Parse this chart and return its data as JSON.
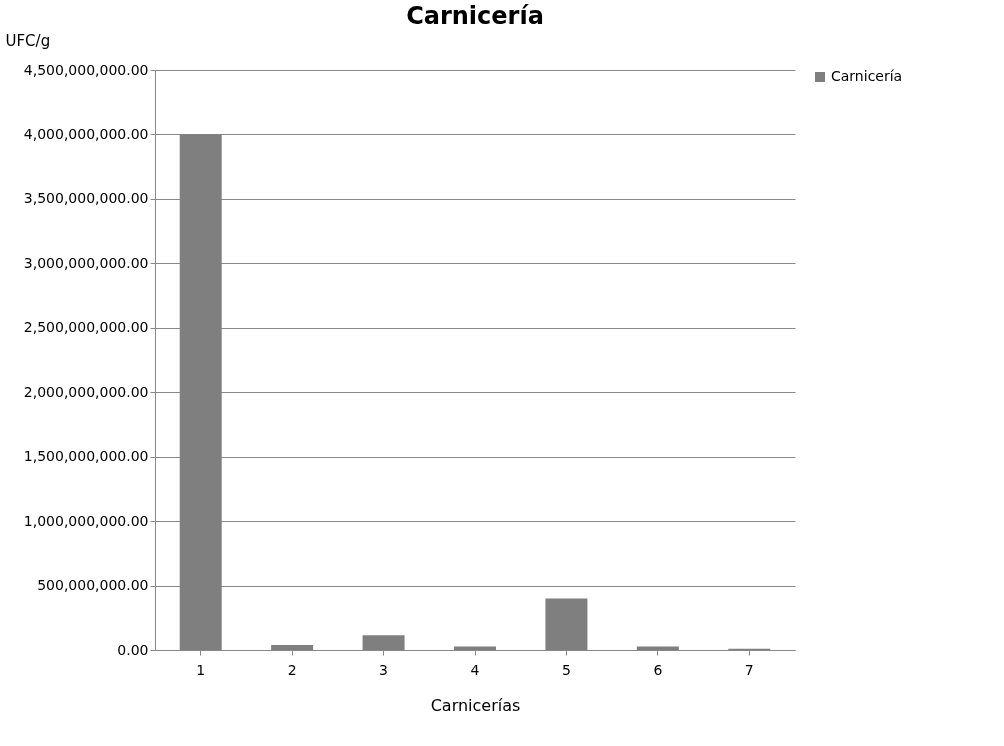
{
  "chart_data": {
    "type": "bar",
    "title": "Carnicería",
    "xlabel": "Carnicerías",
    "ylabel": "UFC/g",
    "categories": [
      "1",
      "2",
      "3",
      "4",
      "5",
      "6",
      "7"
    ],
    "series": [
      {
        "name": "Carnicería",
        "color": "#7f7f7f",
        "values": [
          4000000000,
          38000000,
          115000000,
          28000000,
          400000000,
          28000000,
          10000000
        ]
      }
    ],
    "ylim": [
      0,
      4500000000
    ],
    "yticks": [
      {
        "value": 0,
        "label": "0.00"
      },
      {
        "value": 500000000,
        "label": "500,000,000.00"
      },
      {
        "value": 1000000000,
        "label": "1,000,000,000.00"
      },
      {
        "value": 1500000000,
        "label": "1,500,000,000.00"
      },
      {
        "value": 2000000000,
        "label": "2,000,000,000.00"
      },
      {
        "value": 2500000000,
        "label": "2,500,000,000.00"
      },
      {
        "value": 3000000000,
        "label": "3,000,000,000.00"
      },
      {
        "value": 3500000000,
        "label": "3,500,000,000.00"
      },
      {
        "value": 4000000000,
        "label": "4,000,000,000.00"
      },
      {
        "value": 4500000000,
        "label": "4,500,000,000.00"
      }
    ],
    "grid": "y",
    "legend": "right"
  }
}
